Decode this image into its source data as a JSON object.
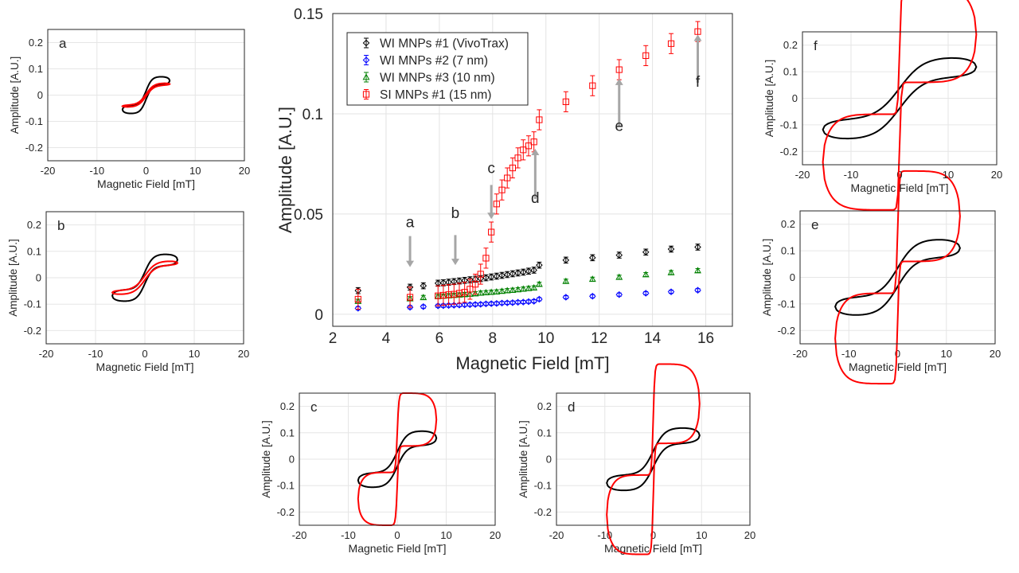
{
  "chart_data": [
    {
      "id": "main",
      "type": "scatter",
      "xlabel": "Magnetic Field [mT]",
      "ylabel": "Amplitude [A.U.]",
      "xlim": [
        2,
        17
      ],
      "ylim": [
        -0.006,
        0.15
      ],
      "xticks": [
        2,
        4,
        6,
        8,
        10,
        12,
        14,
        16
      ],
      "yticks": [
        0,
        0.05,
        0.1,
        0.15
      ],
      "ytick_labels": [
        "0",
        "0.05",
        "0.1",
        "0.15"
      ],
      "grid": true,
      "legend_position": "top-left",
      "series": [
        {
          "name": "WI MNPs #1 (VivoTrax)",
          "color": "#000000",
          "marker": "diamond",
          "x": [
            2.95,
            4.9,
            5.4,
            5.95,
            6.15,
            6.35,
            6.55,
            6.75,
            6.95,
            7.15,
            7.35,
            7.55,
            7.75,
            7.95,
            8.15,
            8.35,
            8.55,
            8.75,
            8.95,
            9.15,
            9.35,
            9.55,
            9.75,
            10.75,
            11.75,
            12.75,
            13.75,
            14.7,
            15.7
          ],
          "y": [
            0.0118,
            0.0135,
            0.0142,
            0.0155,
            0.0157,
            0.016,
            0.0163,
            0.0166,
            0.0169,
            0.0172,
            0.0175,
            0.0178,
            0.0182,
            0.0186,
            0.019,
            0.0194,
            0.0198,
            0.0202,
            0.0206,
            0.021,
            0.0215,
            0.022,
            0.0245,
            0.027,
            0.0282,
            0.0295,
            0.031,
            0.0325,
            0.0335
          ],
          "err": 0.0015
        },
        {
          "name": "WI MNPs #2 (7 nm)",
          "color": "#0000ff",
          "marker": "diamond",
          "x": [
            2.95,
            4.9,
            5.4,
            5.95,
            6.15,
            6.35,
            6.55,
            6.75,
            6.95,
            7.15,
            7.35,
            7.55,
            7.75,
            7.95,
            8.15,
            8.35,
            8.55,
            8.75,
            8.95,
            9.15,
            9.35,
            9.55,
            9.75,
            10.75,
            11.75,
            12.75,
            13.75,
            14.7,
            15.7
          ],
          "y": [
            0.003,
            0.0035,
            0.0038,
            0.0042,
            0.0043,
            0.0044,
            0.0045,
            0.0046,
            0.0047,
            0.0048,
            0.0049,
            0.005,
            0.0052,
            0.0053,
            0.0054,
            0.0056,
            0.0057,
            0.0058,
            0.006,
            0.0061,
            0.0063,
            0.0065,
            0.0075,
            0.0085,
            0.009,
            0.0098,
            0.0105,
            0.0112,
            0.012
          ],
          "err": 0.0008
        },
        {
          "name": "WI MNPs #3 (10 nm)",
          "color": "#008000",
          "marker": "triangle",
          "x": [
            2.95,
            4.9,
            5.4,
            5.95,
            6.15,
            6.35,
            6.55,
            6.75,
            6.95,
            7.15,
            7.35,
            7.55,
            7.75,
            7.95,
            8.15,
            8.35,
            8.55,
            8.75,
            8.95,
            9.15,
            9.35,
            9.55,
            9.75,
            10.75,
            11.75,
            12.75,
            13.75,
            14.7,
            15.7
          ],
          "y": [
            0.0065,
            0.0078,
            0.0084,
            0.0089,
            0.0091,
            0.0093,
            0.0095,
            0.0097,
            0.0099,
            0.0101,
            0.0103,
            0.0106,
            0.0108,
            0.011,
            0.0112,
            0.0115,
            0.0118,
            0.012,
            0.0123,
            0.0126,
            0.0129,
            0.0132,
            0.015,
            0.0165,
            0.0175,
            0.0185,
            0.0198,
            0.0208,
            0.0218
          ],
          "err": 0.001
        },
        {
          "name": "SI MNPs #1 (15 nm)",
          "color": "#ff0000",
          "marker": "square",
          "x": [
            2.95,
            4.9,
            5.95,
            6.15,
            6.35,
            6.55,
            6.75,
            6.95,
            7.15,
            7.35,
            7.55,
            7.75,
            7.95,
            8.15,
            8.35,
            8.55,
            8.75,
            8.95,
            9.15,
            9.35,
            9.55,
            9.75,
            10.75,
            11.75,
            12.75,
            13.75,
            14.7,
            15.7
          ],
          "y": [
            0.0075,
            0.0085,
            0.0092,
            0.0095,
            0.0098,
            0.01,
            0.0105,
            0.011,
            0.0125,
            0.015,
            0.02,
            0.028,
            0.041,
            0.055,
            0.062,
            0.068,
            0.073,
            0.078,
            0.082,
            0.084,
            0.086,
            0.097,
            0.106,
            0.114,
            0.122,
            0.129,
            0.135,
            0.141
          ],
          "err": 0.005
        }
      ],
      "annotations": [
        {
          "label": "a",
          "x": 4.9,
          "y_top": 0.039,
          "y_bottom": 0.0235,
          "text_y": 0.0435,
          "direction": "down"
        },
        {
          "label": "b",
          "x": 6.6,
          "y_top": 0.0395,
          "y_bottom": 0.0245,
          "text_y": 0.048,
          "direction": "down"
        },
        {
          "label": "c",
          "x": 7.95,
          "y_top": 0.0645,
          "y_bottom": 0.0475,
          "text_y": 0.0705,
          "direction": "down"
        },
        {
          "label": "d",
          "x": 9.6,
          "y_top": 0.0575,
          "y_bottom": 0.0825,
          "text_y": 0.0555,
          "direction": "up"
        },
        {
          "label": "e",
          "x": 12.75,
          "y_top": 0.0935,
          "y_bottom": 0.1175,
          "text_y": 0.0915,
          "direction": "up"
        },
        {
          "label": "f",
          "x": 15.7,
          "y_top": 0.1155,
          "y_bottom": 0.1395,
          "text_y": 0.1135,
          "direction": "up"
        }
      ]
    },
    {
      "id": "a",
      "type": "line",
      "panel_label": "a",
      "xlabel": "Magnetic Field [mT]",
      "ylabel": "Amplitude [A.U.]",
      "xlim": [
        -20,
        20
      ],
      "ylim": [
        -0.25,
        0.25
      ],
      "xticks": [
        -20,
        -10,
        0,
        10,
        20
      ],
      "yticks": [
        -0.2,
        -0.1,
        0,
        0.1,
        0.2
      ],
      "black_loop": {
        "h": 4.8,
        "amp": 0.055,
        "open": 0.016,
        "k": 4
      },
      "red_loop": {
        "h": 4.8,
        "amp": 0.042,
        "open": 0.004,
        "k": 3
      }
    },
    {
      "id": "b",
      "type": "line",
      "panel_label": "b",
      "xlabel": "Magnetic Field [mT]",
      "ylabel": "Amplitude [A.U.]",
      "xlim": [
        -20,
        20
      ],
      "ylim": [
        -0.25,
        0.25
      ],
      "xticks": [
        -20,
        -10,
        0,
        10,
        20
      ],
      "yticks": [
        -0.2,
        -0.1,
        0,
        0.1,
        0.2
      ],
      "black_loop": {
        "h": 6.6,
        "amp": 0.068,
        "open": 0.022,
        "k": 4
      },
      "red_loop": {
        "h": 6.6,
        "amp": 0.056,
        "open": 0.008,
        "k": 3
      }
    },
    {
      "id": "c",
      "type": "line",
      "panel_label": "c",
      "xlabel": "Magnetic Field [mT]",
      "ylabel": "Amplitude [A.U.]",
      "xlim": [
        -20,
        20
      ],
      "ylim": [
        -0.25,
        0.25
      ],
      "xticks": [
        -20,
        -10,
        0,
        10,
        20
      ],
      "yticks": [
        -0.2,
        -0.1,
        0,
        0.1,
        0.2
      ],
      "black_loop": {
        "h": 8,
        "amp": 0.08,
        "open": 0.028,
        "k": 4
      },
      "red_loop": {
        "h": 8,
        "amp": 0.15,
        "open": 0.1,
        "k": 24
      }
    },
    {
      "id": "d",
      "type": "line",
      "panel_label": "d",
      "xlabel": "Magnetic Field [mT]",
      "ylabel": "Amplitude [A.U.]",
      "xlim": [
        -20,
        20
      ],
      "ylim": [
        -0.25,
        0.25
      ],
      "xticks": [
        -20,
        -10,
        0,
        10,
        20
      ],
      "yticks": [
        -0.2,
        -0.1,
        0,
        0.1,
        0.2
      ],
      "black_loop": {
        "h": 9.6,
        "amp": 0.09,
        "open": 0.03,
        "k": 4
      },
      "red_loop": {
        "h": 9.6,
        "amp": 0.21,
        "open": 0.15,
        "k": 30
      }
    },
    {
      "id": "e",
      "type": "line",
      "panel_label": "e",
      "xlabel": "Magnetic Field [mT]",
      "ylabel": "Amplitude [A.U.]",
      "xlim": [
        -20,
        20
      ],
      "ylim": [
        -0.25,
        0.25
      ],
      "xticks": [
        -20,
        -10,
        0,
        10,
        20
      ],
      "yticks": [
        -0.2,
        -0.1,
        0,
        0.1,
        0.2
      ],
      "black_loop": {
        "h": 12.8,
        "amp": 0.11,
        "open": 0.035,
        "k": 3.5
      },
      "red_loop": {
        "h": 12.8,
        "amp": 0.23,
        "open": 0.17,
        "k": 38
      }
    },
    {
      "id": "f",
      "type": "line",
      "panel_label": "f",
      "xlabel": "Magnetic Field [mT]",
      "ylabel": "Amplitude [A.U.]",
      "xlim": [
        -20,
        20
      ],
      "ylim": [
        -0.25,
        0.25
      ],
      "xticks": [
        -20,
        -10,
        0,
        10,
        20
      ],
      "yticks": [
        -0.2,
        -0.1,
        0,
        0.1,
        0.2
      ],
      "black_loop": {
        "h": 15.8,
        "amp": 0.118,
        "open": 0.038,
        "k": 3.2
      },
      "red_loop": {
        "h": 15.8,
        "amp": 0.24,
        "open": 0.18,
        "k": 45
      }
    }
  ]
}
